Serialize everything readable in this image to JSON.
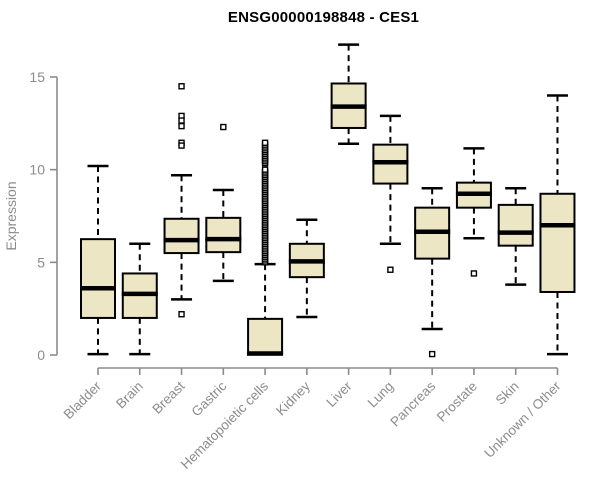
{
  "chart_data": {
    "type": "boxplot",
    "title": "ENSG00000198848 - CES1",
    "ylabel": "Expression",
    "xlabel": "",
    "ylim": [
      0,
      15
    ],
    "yticks": [
      0,
      5,
      10,
      15
    ],
    "grid": false,
    "legend": "none",
    "categories": [
      "Bladder",
      "Brain",
      "Breast",
      "Gastric",
      "Hematopoietic cells",
      "Kidney",
      "Liver",
      "Lung",
      "Pancreas",
      "Prostate",
      "Skin",
      "Unknown / Other"
    ],
    "boxes": [
      {
        "label": "Bladder",
        "whisker_low": 0.05,
        "q1": 2.0,
        "median": 3.6,
        "q3": 6.25,
        "whisker_high": 10.2,
        "outliers": []
      },
      {
        "label": "Brain",
        "whisker_low": 0.05,
        "q1": 2.0,
        "median": 3.3,
        "q3": 4.4,
        "whisker_high": 6.0,
        "outliers": []
      },
      {
        "label": "Breast",
        "whisker_low": 3.0,
        "q1": 5.5,
        "median": 6.2,
        "q3": 7.35,
        "whisker_high": 9.7,
        "outliers": [
          14.5,
          12.9,
          12.65,
          12.35,
          11.45,
          11.3,
          2.2
        ]
      },
      {
        "label": "Gastric",
        "whisker_low": 4.0,
        "q1": 5.55,
        "median": 6.25,
        "q3": 7.4,
        "whisker_high": 8.9,
        "outliers": [
          12.3
        ]
      },
      {
        "label": "Hematopoietic cells",
        "whisker_low": 0.02,
        "q1": 0.02,
        "median": 0.08,
        "q3": 1.95,
        "whisker_high": 4.9,
        "outliers": [
          5.0,
          5.1,
          5.2,
          5.3,
          5.4,
          5.5,
          5.6,
          5.7,
          5.8,
          5.9,
          6.0,
          6.1,
          6.2,
          6.3,
          6.4,
          6.5,
          6.6,
          6.7,
          6.8,
          6.9,
          7.0,
          7.1,
          7.2,
          7.3,
          7.4,
          7.5,
          7.6,
          7.7,
          7.8,
          7.9,
          8.0,
          8.1,
          8.2,
          8.3,
          8.4,
          8.5,
          8.6,
          8.7,
          8.8,
          8.9,
          9.0,
          9.1,
          9.2,
          9.3,
          9.4,
          9.5,
          9.6,
          9.7,
          9.8,
          9.9,
          10.0,
          10.35,
          10.45,
          10.55,
          10.65,
          10.75,
          10.85,
          10.95,
          11.05,
          11.15,
          11.25,
          11.35,
          11.45
        ]
      },
      {
        "label": "Kidney",
        "whisker_low": 2.05,
        "q1": 4.2,
        "median": 5.05,
        "q3": 6.0,
        "whisker_high": 7.3,
        "outliers": []
      },
      {
        "label": "Liver",
        "whisker_low": 11.4,
        "q1": 12.25,
        "median": 13.4,
        "q3": 14.65,
        "whisker_high": 16.75,
        "outliers": []
      },
      {
        "label": "Lung",
        "whisker_low": 6.0,
        "q1": 9.25,
        "median": 10.4,
        "q3": 11.35,
        "whisker_high": 12.9,
        "outliers": [
          4.6
        ]
      },
      {
        "label": "Pancreas",
        "whisker_low": 1.4,
        "q1": 5.2,
        "median": 6.65,
        "q3": 7.95,
        "whisker_high": 9.0,
        "outliers": [
          0.05
        ]
      },
      {
        "label": "Prostate",
        "whisker_low": 6.3,
        "q1": 7.95,
        "median": 8.7,
        "q3": 9.3,
        "whisker_high": 11.15,
        "outliers": [
          4.4
        ]
      },
      {
        "label": "Skin",
        "whisker_low": 3.8,
        "q1": 5.9,
        "median": 6.6,
        "q3": 8.1,
        "whisker_high": 9.0,
        "outliers": []
      },
      {
        "label": "Unknown / Other",
        "whisker_low": 0.05,
        "q1": 3.4,
        "median": 7.0,
        "q3": 8.7,
        "whisker_high": 14.0,
        "outliers": []
      }
    ]
  },
  "colors": {
    "box_fill": "#EDE6C5",
    "box_border": "#000000",
    "median": "#000000",
    "whisker": "#000000",
    "outlier_fill": "#FFFFFF",
    "axis": "#8C8C8C",
    "tick_text": "#8C8C8C",
    "category_text": "#8C8C8C",
    "title": "#000000",
    "background": "#FFFFFF"
  }
}
